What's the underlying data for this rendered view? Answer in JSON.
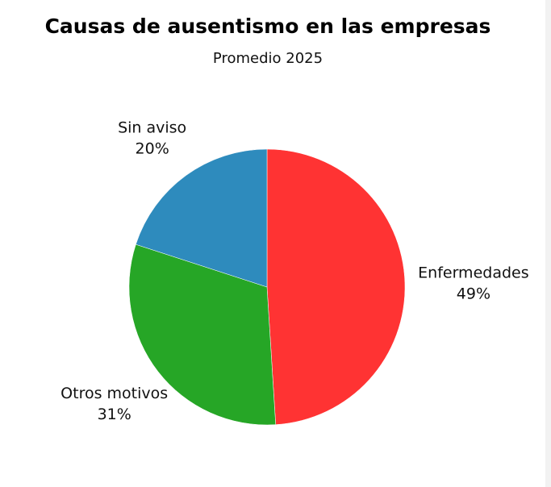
{
  "chart_data": {
    "type": "pie",
    "title": "Causas de ausentismo en las empresas",
    "subtitle": "Promedio 2025",
    "start_angle": "top",
    "direction": "clockwise",
    "slices": [
      {
        "label": "Enfermedades",
        "value": 49,
        "value_label": "49%",
        "color": "#ff3333"
      },
      {
        "label": "Otros motivos",
        "value": 31,
        "value_label": "31%",
        "color": "#26a626"
      },
      {
        "label": "Sin aviso",
        "value": 20,
        "value_label": "20%",
        "color": "#2e8bbd"
      }
    ]
  }
}
